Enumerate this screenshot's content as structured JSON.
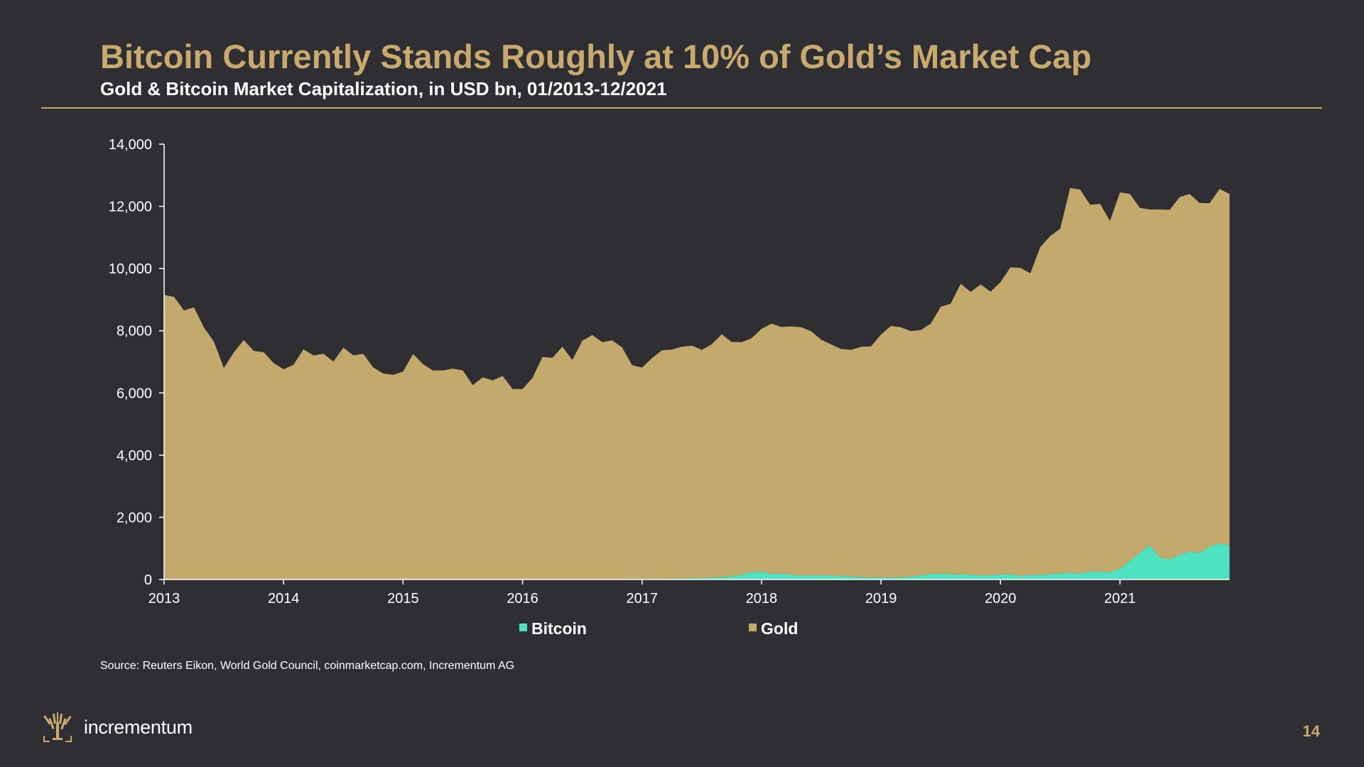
{
  "slide": {
    "title": "Bitcoin Currently Stands Roughly at 10% of Gold’s Market Cap",
    "subtitle": "Gold & Bitcoin Market Capitalization, in USD bn, 01/2013-12/2021",
    "source": "Source: Reuters Eikon, World Gold Council, coinmarketcap.com, Incrementum AG",
    "logo_text": "incrementum",
    "logo_icon": "tree-icon",
    "page_number": "14"
  },
  "colors": {
    "background": "#2f2f33",
    "accent": "#c8aa6e",
    "gold": "#c4a96d",
    "bitcoin": "#4de3c1",
    "text": "#ffffff"
  },
  "chart_data": {
    "type": "area",
    "stacked": true,
    "x_start": "2013-01",
    "x_frequency": "monthly",
    "x_tick_labels": [
      "2013",
      "2014",
      "2015",
      "2016",
      "2017",
      "2018",
      "2019",
      "2020",
      "2021"
    ],
    "y_tick_labels": [
      "0",
      "2,000",
      "4,000",
      "6,000",
      "8,000",
      "10,000",
      "12,000",
      "14,000"
    ],
    "ylim": [
      0,
      14000
    ],
    "grid": false,
    "legend": "bottom-center",
    "series": [
      {
        "name": "Bitcoin",
        "color": "#4de3c1",
        "values": [
          0,
          0,
          1,
          1,
          1,
          1,
          1,
          1,
          1,
          2,
          8,
          10,
          10,
          7,
          6,
          5,
          6,
          8,
          7,
          7,
          6,
          5,
          5,
          4,
          3,
          3,
          4,
          3,
          3,
          4,
          4,
          4,
          3,
          4,
          5,
          5,
          6,
          6,
          6,
          7,
          7,
          10,
          10,
          10,
          10,
          12,
          12,
          15,
          15,
          20,
          20,
          25,
          35,
          40,
          45,
          65,
          75,
          100,
          160,
          240,
          250,
          180,
          190,
          150,
          130,
          120,
          130,
          120,
          110,
          95,
          75,
          65,
          60,
          65,
          70,
          90,
          130,
          190,
          180,
          170,
          160,
          160,
          130,
          135,
          160,
          170,
          110,
          150,
          150,
          170,
          200,
          210,
          190,
          250,
          260,
          230,
          350,
          600,
          850,
          1100,
          700,
          650,
          800,
          900,
          850,
          1050,
          1160,
          1100
        ]
      },
      {
        "name": "Gold",
        "color": "#c4a96d",
        "values": [
          9150,
          9090,
          8650,
          8750,
          8100,
          7650,
          6800,
          7300,
          7700,
          7350,
          7300,
          6950,
          6750,
          6900,
          7400,
          7200,
          7250,
          7000,
          7450,
          7200,
          7250,
          6820,
          6620,
          6580,
          6680,
          7250,
          6920,
          6720,
          6720,
          6780,
          6720,
          6250,
          6500,
          6400,
          6540,
          6120,
          6120,
          6480,
          7150,
          7120,
          7480,
          7050,
          7670,
          7850,
          7620,
          7680,
          7450,
          6880,
          6800,
          7100,
          7350,
          7370,
          7450,
          7480,
          7340,
          7500,
          7810,
          7540,
          7470,
          7520,
          7810,
          8050,
          7930,
          7990,
          7980,
          7860,
          7580,
          7440,
          7300,
          7290,
          7410,
          7430,
          7820,
          8090,
          8040,
          7900,
          7890,
          8040,
          8590,
          8700,
          9350,
          9090,
          9360,
          9120,
          9400,
          9870,
          9910,
          9700,
          10540,
          10880,
          11080,
          12380,
          12350,
          11800,
          11820,
          11300,
          12100,
          11800,
          11100,
          10800,
          11200,
          11240,
          11500,
          11500,
          11260,
          11050,
          11400,
          11300
        ]
      }
    ]
  }
}
